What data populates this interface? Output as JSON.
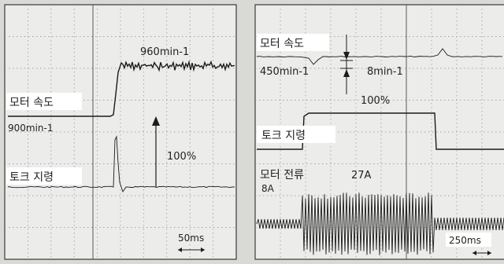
{
  "chart_data": [
    {
      "type": "line",
      "panel": "left",
      "labels": {
        "speed_signal": "모터 속도",
        "torque_signal": "토크 지령",
        "speed_high": "960min-1",
        "speed_low": "900min-1",
        "step": "100%",
        "timescale": "50ms"
      },
      "series": [
        {
          "name": "모터 속도",
          "x": [
            0,
            1.0,
            1.1,
            1.3,
            1.5,
            1.8,
            2.5,
            3.0,
            3.5,
            4.0,
            4.5,
            5.0
          ],
          "y": [
            900,
            900,
            905,
            935,
            958,
            964,
            962,
            961,
            960,
            961,
            960,
            960
          ]
        },
        {
          "name": "토크 지령",
          "x": [
            0,
            0.95,
            1.0,
            1.05,
            1.1,
            1.2,
            1.4,
            2.0,
            3.0,
            4.0,
            5.0
          ],
          "y": [
            0,
            0,
            100,
            30,
            5,
            2,
            0,
            0,
            0,
            0,
            0
          ]
        }
      ]
    },
    {
      "type": "line",
      "panel": "right",
      "labels": {
        "speed_signal": "모터 속도",
        "torque_signal": "토크 지령",
        "current_signal": "모터 전류",
        "speed_value": "450min-1",
        "speed_dip": "8min-1",
        "step": "100%",
        "current_high": "27A",
        "current_low": "8A",
        "timescale": "250ms"
      },
      "series": [
        {
          "name": "모터 속도",
          "x": [
            0,
            0.6,
            0.75,
            0.9,
            1.0,
            4.5,
            4.6,
            4.75,
            4.9,
            6.0
          ],
          "y": [
            450,
            450,
            442,
            448,
            450,
            450,
            458,
            452,
            450,
            450
          ]
        },
        {
          "name": "토크 지령",
          "x": [
            0,
            0.6,
            0.65,
            4.5,
            4.55,
            6.0
          ],
          "y": [
            0,
            0,
            100,
            100,
            0,
            0
          ]
        },
        {
          "name": "모터 전류",
          "x": [
            0,
            0.6,
            0.65,
            4.5,
            4.55,
            6.0
          ],
          "y": [
            8,
            8,
            27,
            27,
            8,
            8
          ]
        }
      ]
    }
  ]
}
